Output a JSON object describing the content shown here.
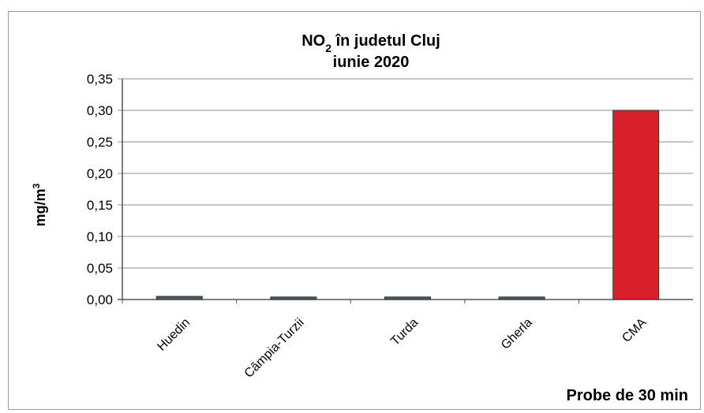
{
  "chart_data": {
    "type": "bar",
    "title_prefix": "NO",
    "title_subscript": "2",
    "title_suffix": " în judetul Cluj",
    "subtitle": "iunie 2020",
    "ylabel": "mg/m",
    "ylabel_superscript": "3",
    "categories": [
      "Huedin",
      "Câmpia-Turzii",
      "Turda",
      "Gherla",
      "CMA"
    ],
    "values": [
      0.005,
      0.004,
      0.004,
      0.004,
      0.3
    ],
    "ylim": [
      0,
      0.35
    ],
    "yticks": [
      "0,00",
      "0,05",
      "0,10",
      "0,15",
      "0,20",
      "0,25",
      "0,30",
      "0,35"
    ],
    "grid": true,
    "bar_colors": [
      "#4a5a6a",
      "#4a5a6a",
      "#4a5a6a",
      "#4a5a6a",
      "#d8202a"
    ],
    "annotation": "Probe de 30 min"
  }
}
